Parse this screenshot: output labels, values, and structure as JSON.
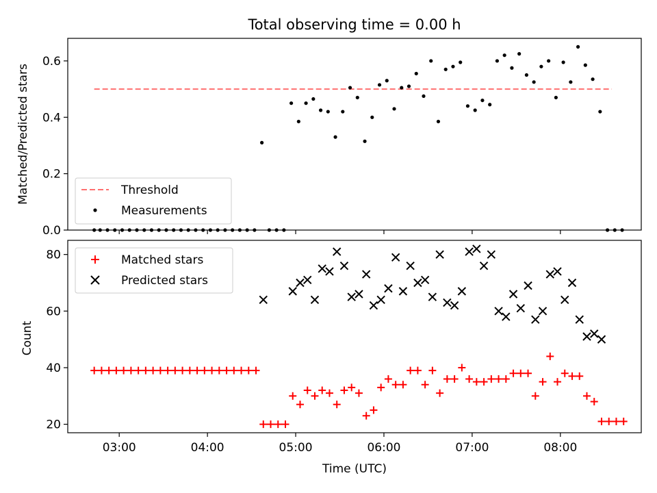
{
  "chart_data": [
    {
      "type": "scatter",
      "title": "Total observing time = 0.00 h",
      "xlabel": "",
      "ylabel": "Matched/Predicted stars",
      "ylim": [
        0,
        0.68
      ],
      "yticks": [
        0.0,
        0.2,
        0.4,
        0.6
      ],
      "ytick_labels": [
        "0.0",
        "0.2",
        "0.4",
        "0.6"
      ],
      "xlim": [
        "02:25",
        "08:55"
      ],
      "grid": false,
      "legend": "lower left",
      "legend_labels": [
        "Threshold",
        "Measurements"
      ],
      "threshold": {
        "y": 0.5,
        "x_start": "02:43",
        "x_end": "08:35",
        "color": "#ff6f6f"
      },
      "series": [
        {
          "name": "Measurements",
          "color": "#000000",
          "x": [
            "02:43",
            "02:47",
            "02:52",
            "02:57",
            "03:02",
            "03:07",
            "03:12",
            "03:17",
            "03:22",
            "03:27",
            "03:32",
            "03:37",
            "03:42",
            "03:47",
            "03:52",
            "03:57",
            "04:02",
            "04:07",
            "04:12",
            "04:17",
            "04:22",
            "04:27",
            "04:32",
            "04:37",
            "04:42",
            "04:47",
            "04:52",
            "04:57",
            "05:02",
            "05:07",
            "05:12",
            "05:17",
            "05:22",
            "05:27",
            "05:32",
            "05:37",
            "05:42",
            "05:47",
            "05:52",
            "05:57",
            "06:02",
            "06:07",
            "06:12",
            "06:17",
            "06:22",
            "06:27",
            "06:32",
            "06:37",
            "06:42",
            "06:47",
            "06:52",
            "06:57",
            "07:02",
            "07:07",
            "07:12",
            "07:17",
            "07:22",
            "07:27",
            "07:32",
            "07:37",
            "07:42",
            "07:47",
            "07:52",
            "07:57",
            "08:02",
            "08:07",
            "08:12",
            "08:17",
            "08:22",
            "08:27",
            "08:32",
            "08:37",
            "08:42"
          ],
          "y": [
            0,
            0,
            0,
            0,
            0,
            0,
            0,
            0,
            0,
            0,
            0,
            0,
            0,
            0,
            0,
            0,
            0,
            0,
            0,
            0,
            0,
            0,
            0,
            0.31,
            0,
            0,
            0,
            0.45,
            0.385,
            0.45,
            0.465,
            0.425,
            0.42,
            0.33,
            0.42,
            0.505,
            0.47,
            0.315,
            0.4,
            0.515,
            0.53,
            0.43,
            0.505,
            0.51,
            0.555,
            0.475,
            0.6,
            0.385,
            0.57,
            0.58,
            0.595,
            0.44,
            0.425,
            0.46,
            0.445,
            0.6,
            0.62,
            0.575,
            0.625,
            0.55,
            0.525,
            0.58,
            0.6,
            0.47,
            0.595,
            0.525,
            0.65,
            0.585,
            0.535,
            0.42,
            0,
            0,
            0
          ]
        }
      ]
    },
    {
      "type": "scatter",
      "xlabel": "Time (UTC)",
      "ylabel": "Count",
      "ylim": [
        17,
        85
      ],
      "yticks": [
        20,
        40,
        60,
        80
      ],
      "ytick_labels": [
        "20",
        "40",
        "60",
        "80"
      ],
      "xlim": [
        "02:25",
        "08:55"
      ],
      "xticks": [
        "03:00",
        "04:00",
        "05:00",
        "06:00",
        "07:00",
        "08:00"
      ],
      "grid": false,
      "legend": "upper left",
      "legend_labels": [
        "Matched stars",
        "Predicted stars"
      ],
      "series": [
        {
          "name": "Matched stars",
          "color": "#ff0000",
          "marker": "+",
          "x": [
            "02:43",
            "02:48",
            "02:53",
            "02:58",
            "03:03",
            "03:08",
            "03:13",
            "03:18",
            "03:23",
            "03:28",
            "03:33",
            "03:38",
            "03:43",
            "03:48",
            "03:53",
            "03:58",
            "04:03",
            "04:08",
            "04:13",
            "04:18",
            "04:23",
            "04:28",
            "04:33",
            "04:38",
            "04:43",
            "04:48",
            "04:53",
            "04:58",
            "05:03",
            "05:08",
            "05:13",
            "05:18",
            "05:23",
            "05:28",
            "05:33",
            "05:38",
            "05:43",
            "05:48",
            "05:53",
            "05:58",
            "06:03",
            "06:08",
            "06:13",
            "06:18",
            "06:23",
            "06:28",
            "06:33",
            "06:38",
            "06:43",
            "06:48",
            "06:53",
            "06:58",
            "07:03",
            "07:08",
            "07:13",
            "07:18",
            "07:23",
            "07:28",
            "07:33",
            "07:38",
            "07:43",
            "07:48",
            "07:53",
            "07:58",
            "08:03",
            "08:08",
            "08:13",
            "08:18",
            "08:23",
            "08:28",
            "08:33",
            "08:38",
            "08:43"
          ],
          "y": [
            39,
            39,
            39,
            39,
            39,
            39,
            39,
            39,
            39,
            39,
            39,
            39,
            39,
            39,
            39,
            39,
            39,
            39,
            39,
            39,
            39,
            39,
            39,
            20,
            20,
            20,
            20,
            30,
            27,
            32,
            30,
            32,
            31,
            27,
            32,
            33,
            31,
            23,
            25,
            33,
            36,
            34,
            34,
            39,
            39,
            34,
            39,
            31,
            36,
            36,
            40,
            36,
            35,
            35,
            36,
            36,
            36,
            38,
            38,
            38,
            30,
            35,
            44,
            35,
            38,
            37,
            37,
            30,
            28,
            21,
            21,
            21,
            21
          ]
        },
        {
          "name": "Predicted stars",
          "color": "#000000",
          "marker": "x",
          "x": [
            "04:38",
            "04:58",
            "05:03",
            "05:08",
            "05:13",
            "05:18",
            "05:23",
            "05:28",
            "05:33",
            "05:38",
            "05:43",
            "05:48",
            "05:53",
            "05:58",
            "06:03",
            "06:08",
            "06:13",
            "06:18",
            "06:23",
            "06:28",
            "06:33",
            "06:38",
            "06:43",
            "06:48",
            "06:53",
            "06:58",
            "07:03",
            "07:08",
            "07:13",
            "07:18",
            "07:23",
            "07:28",
            "07:33",
            "07:38",
            "07:43",
            "07:48",
            "07:53",
            "07:58",
            "08:03",
            "08:08",
            "08:13",
            "08:18",
            "08:23",
            "08:28"
          ],
          "y": [
            64,
            67,
            70,
            71,
            64,
            75,
            74,
            81,
            76,
            65,
            66,
            73,
            62,
            64,
            68,
            79,
            67,
            76,
            70,
            71,
            65,
            80,
            63,
            62,
            67,
            81,
            82,
            76,
            80,
            60,
            58,
            66,
            61,
            69,
            57,
            60,
            73,
            74,
            64,
            70,
            57,
            51,
            52,
            50
          ]
        }
      ]
    }
  ]
}
